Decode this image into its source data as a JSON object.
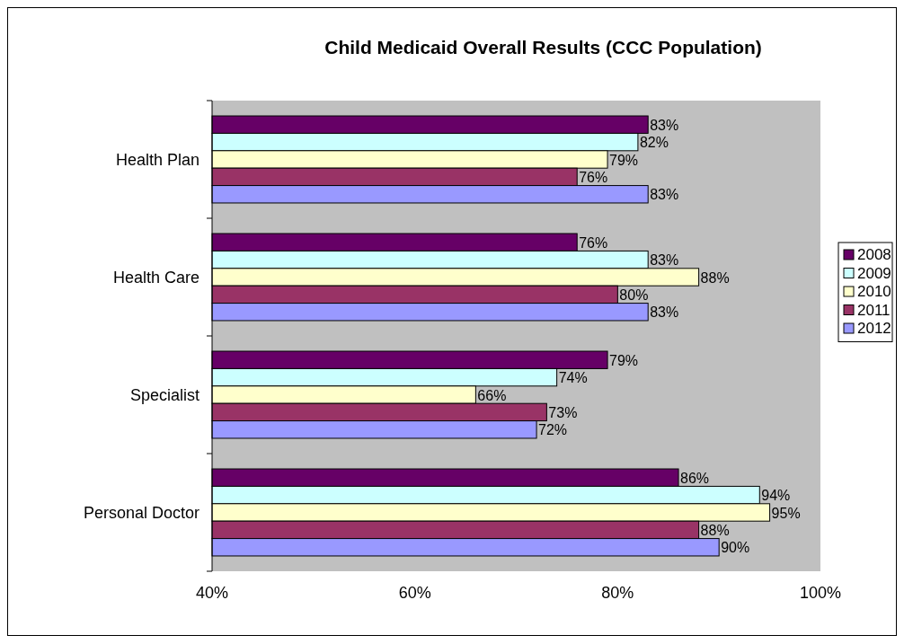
{
  "chart_data": {
    "type": "bar",
    "orientation": "horizontal",
    "title": "Child Medicaid Overall Results (CCC Population)",
    "categories": [
      "Health Plan",
      "Health Care",
      "Specialist",
      "Personal Doctor"
    ],
    "series": [
      {
        "name": "2008",
        "color": "#660066",
        "values": [
          83,
          76,
          79,
          86
        ],
        "value_labels": [
          "83%",
          "76%",
          "79%",
          "86%"
        ]
      },
      {
        "name": "2009",
        "color": "#ccffff",
        "values": [
          82,
          83,
          74,
          94
        ],
        "value_labels": [
          "82%",
          "83%",
          "74%",
          "94%"
        ]
      },
      {
        "name": "2010",
        "color": "#ffffcc",
        "values": [
          79,
          88,
          66,
          95
        ],
        "value_labels": [
          "79%",
          "88%",
          "66%",
          "95%"
        ]
      },
      {
        "name": "2011",
        "color": "#993366",
        "values": [
          76,
          80,
          73,
          88
        ],
        "value_labels": [
          "76%",
          "80%",
          "73%",
          "88%"
        ]
      },
      {
        "name": "2012",
        "color": "#9999ff",
        "values": [
          83,
          83,
          72,
          90
        ],
        "value_labels": [
          "83%",
          "83%",
          "72%",
          "90%"
        ]
      }
    ],
    "xlim": [
      40,
      100
    ],
    "xticks": [
      {
        "value": 40,
        "label": "40%"
      },
      {
        "value": 60,
        "label": "60%"
      },
      {
        "value": 80,
        "label": "80%"
      },
      {
        "value": 100,
        "label": "100%"
      }
    ],
    "grid": false,
    "legend": "right"
  }
}
